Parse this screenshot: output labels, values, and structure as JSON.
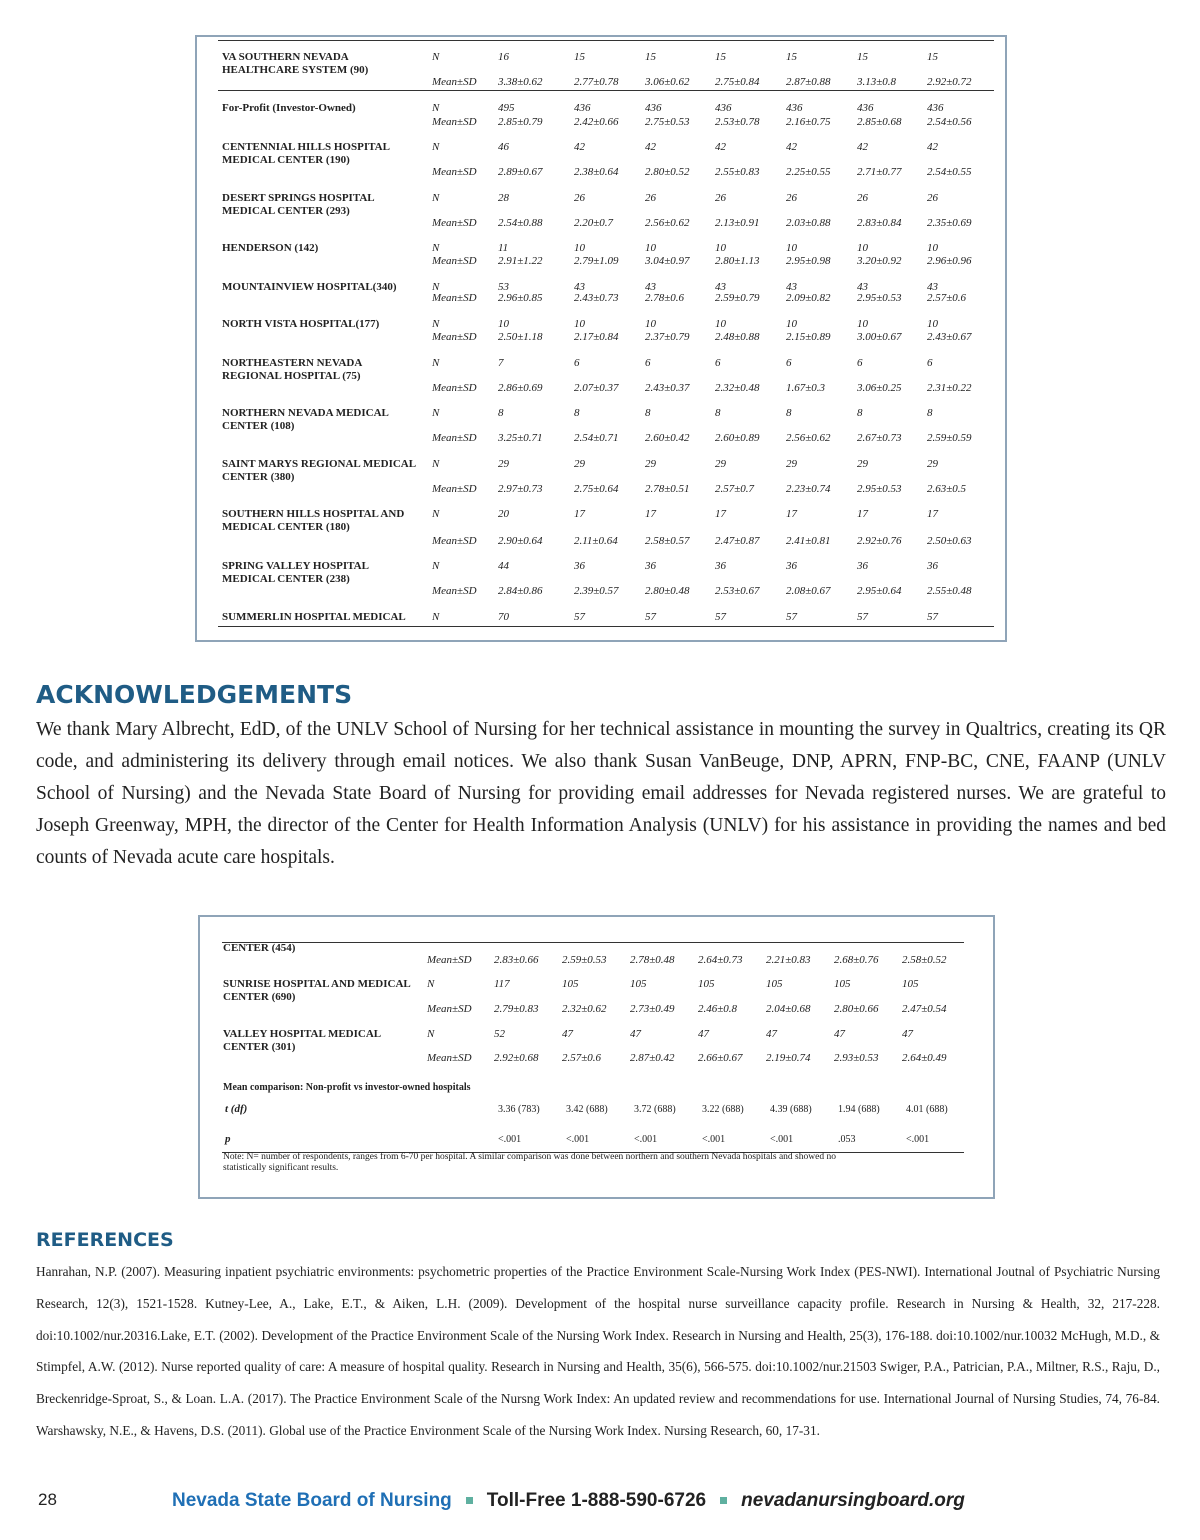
{
  "table1": {
    "rows": [
      {
        "label": "VA SOUTHERN NEVADA HEALTHCARE SYSTEM (90)",
        "stats": [
          {
            "label": "N",
            "values": [
              "16",
              "15",
              "15",
              "15",
              "15",
              "15",
              "15"
            ]
          },
          {
            "label": "Mean±SD",
            "values": [
              "3.38±0.62",
              "2.77±0.78",
              "3.06±0.62",
              "2.75±0.84",
              "2.87±0.88",
              "3.13±0.8",
              "2.92±0.72"
            ]
          }
        ]
      },
      {
        "label": "For-Profit (Investor-Owned)",
        "stats": [
          {
            "label": "N",
            "values": [
              "495",
              "436",
              "436",
              "436",
              "436",
              "436",
              "436"
            ]
          },
          {
            "label": "Mean±SD",
            "values": [
              "2.85±0.79",
              "2.42±0.66",
              "2.75±0.53",
              "2.53±0.78",
              "2.16±0.75",
              "2.85±0.68",
              "2.54±0.56"
            ]
          }
        ]
      },
      {
        "label": "CENTENNIAL HILLS HOSPITAL MEDICAL CENTER (190)",
        "stats": [
          {
            "label": "N",
            "values": [
              "46",
              "42",
              "42",
              "42",
              "42",
              "42",
              "42"
            ]
          },
          {
            "label": "Mean±SD",
            "values": [
              "2.89±0.67",
              "2.38±0.64",
              "2.80±0.52",
              "2.55±0.83",
              "2.25±0.55",
              "2.71±0.77",
              "2.54±0.55"
            ]
          }
        ]
      },
      {
        "label": "DESERT SPRINGS HOSPITAL MEDICAL CENTER (293)",
        "stats": [
          {
            "label": "N",
            "values": [
              "28",
              "26",
              "26",
              "26",
              "26",
              "26",
              "26"
            ]
          },
          {
            "label": "Mean±SD",
            "values": [
              "2.54±0.88",
              "2.20±0.7",
              "2.56±0.62",
              "2.13±0.91",
              "2.03±0.88",
              "2.83±0.84",
              "2.35±0.69"
            ]
          }
        ]
      },
      {
        "label": "HENDERSON (142)",
        "stats": [
          {
            "label": "N",
            "values": [
              "11",
              "10",
              "10",
              "10",
              "10",
              "10",
              "10"
            ]
          },
          {
            "label": "Mean±SD",
            "values": [
              "2.91±1.22",
              "2.79±1.09",
              "3.04±0.97",
              "2.80±1.13",
              "2.95±0.98",
              "3.20±0.92",
              "2.96±0.96"
            ]
          }
        ]
      },
      {
        "label": "MOUNTAINVIEW HOSPITAL(340)",
        "stats": [
          {
            "label": "N",
            "values": [
              "53",
              "43",
              "43",
              "43",
              "43",
              "43",
              "43"
            ]
          },
          {
            "label": "Mean±SD",
            "values": [
              "2.96±0.85",
              "2.43±0.73",
              "2.78±0.6",
              "2.59±0.79",
              "2.09±0.82",
              "2.95±0.53",
              "2.57±0.6"
            ]
          }
        ]
      },
      {
        "label": "NORTH VISTA HOSPITAL(177)",
        "stats": [
          {
            "label": "N",
            "values": [
              "10",
              "10",
              "10",
              "10",
              "10",
              "10",
              "10"
            ]
          },
          {
            "label": "Mean±SD",
            "values": [
              "2.50±1.18",
              "2.17±0.84",
              "2.37±0.79",
              "2.48±0.88",
              "2.15±0.89",
              "3.00±0.67",
              "2.43±0.67"
            ]
          }
        ]
      },
      {
        "label": "NORTHEASTERN NEVADA REGIONAL HOSPITAL (75)",
        "stats": [
          {
            "label": "N",
            "values": [
              "7",
              "6",
              "6",
              "6",
              "6",
              "6",
              "6"
            ]
          },
          {
            "label": "Mean±SD",
            "values": [
              "2.86±0.69",
              "2.07±0.37",
              "2.43±0.37",
              "2.32±0.48",
              "1.67±0.3",
              "3.06±0.25",
              "2.31±0.22"
            ]
          }
        ]
      },
      {
        "label": "NORTHERN NEVADA MEDICAL CENTER (108)",
        "stats": [
          {
            "label": "N",
            "values": [
              "8",
              "8",
              "8",
              "8",
              "8",
              "8",
              "8"
            ]
          },
          {
            "label": "Mean±SD",
            "values": [
              "3.25±0.71",
              "2.54±0.71",
              "2.60±0.42",
              "2.60±0.89",
              "2.56±0.62",
              "2.67±0.73",
              "2.59±0.59"
            ]
          }
        ]
      },
      {
        "label": "SAINT MARYS REGIONAL MEDICAL CENTER (380)",
        "stats": [
          {
            "label": "N",
            "values": [
              "29",
              "29",
              "29",
              "29",
              "29",
              "29",
              "29"
            ]
          },
          {
            "label": "Mean±SD",
            "values": [
              "2.97±0.73",
              "2.75±0.64",
              "2.78±0.51",
              "2.57±0.7",
              "2.23±0.74",
              "2.95±0.53",
              "2.63±0.5"
            ]
          }
        ]
      },
      {
        "label": "SOUTHERN HILLS HOSPITAL AND MEDICAL CENTER (180)",
        "stats": [
          {
            "label": "N",
            "values": [
              "20",
              "17",
              "17",
              "17",
              "17",
              "17",
              "17"
            ]
          },
          {
            "label": "Mean±SD",
            "values": [
              "2.90±0.64",
              "2.11±0.64",
              "2.58±0.57",
              "2.47±0.87",
              "2.41±0.81",
              "2.92±0.76",
              "2.50±0.63"
            ]
          }
        ]
      },
      {
        "label": "SPRING VALLEY HOSPITAL MEDICAL CENTER (238)",
        "stats": [
          {
            "label": "N",
            "values": [
              "44",
              "36",
              "36",
              "36",
              "36",
              "36",
              "36"
            ]
          },
          {
            "label": "Mean±SD",
            "values": [
              "2.84±0.86",
              "2.39±0.57",
              "2.80±0.48",
              "2.53±0.67",
              "2.08±0.67",
              "2.95±0.64",
              "2.55±0.48"
            ]
          }
        ]
      },
      {
        "label": "SUMMERLIN HOSPITAL MEDICAL",
        "stats": [
          {
            "label": "N",
            "values": [
              "70",
              "57",
              "57",
              "57",
              "57",
              "57",
              "57"
            ]
          }
        ]
      }
    ]
  },
  "acknowledgements": {
    "title": "ACKNOWLEDGEMENTS",
    "text": "We thank Mary Albrecht, EdD, of the UNLV School of Nursing for her technical assistance in mounting the survey in Qualtrics, creating its QR code, and administering its delivery through email notices. We also thank Susan VanBeuge, DNP, APRN, FNP-BC, CNE, FAANP (UNLV School of Nursing) and the Nevada State Board of Nursing for providing email addresses for Nevada registered nurses. We are grateful to Joseph Greenway, MPH, the director of the Center for Health Information Analysis (UNLV) for his assistance in providing the names and bed counts of Nevada acute care hospitals."
  },
  "table2": {
    "rows": [
      {
        "label": "CENTER (454)",
        "stats": [
          {
            "label": "Mean±SD",
            "values": [
              "2.83±0.66",
              "2.59±0.53",
              "2.78±0.48",
              "2.64±0.73",
              "2.21±0.83",
              "2.68±0.76",
              "2.58±0.52"
            ]
          }
        ]
      },
      {
        "label": "SUNRISE HOSPITAL AND MEDICAL CENTER (690)",
        "stats": [
          {
            "label": "N",
            "values": [
              "117",
              "105",
              "105",
              "105",
              "105",
              "105",
              "105"
            ]
          },
          {
            "label": "Mean±SD",
            "values": [
              "2.79±0.83",
              "2.32±0.62",
              "2.73±0.49",
              "2.46±0.8",
              "2.04±0.68",
              "2.80±0.66",
              "2.47±0.54"
            ]
          }
        ]
      },
      {
        "label": "VALLEY HOSPITAL MEDICAL CENTER (301)",
        "stats": [
          {
            "label": "N",
            "values": [
              "52",
              "47",
              "47",
              "47",
              "47",
              "47",
              "47"
            ]
          },
          {
            "label": "Mean±SD",
            "values": [
              "2.92±0.68",
              "2.57±0.6",
              "2.87±0.42",
              "2.66±0.67",
              "2.19±0.74",
              "2.93±0.53",
              "2.64±0.49"
            ]
          }
        ]
      }
    ],
    "comparison": {
      "title": "Mean comparison: Non-profit vs investor-owned hospitals",
      "stats": [
        {
          "label": "t (df)",
          "values": [
            "3.36 (783)",
            "3.42 (688)",
            "3.72 (688)",
            "3.22 (688)",
            "4.39 (688)",
            "1.94 (688)",
            "4.01 (688)"
          ]
        },
        {
          "label": "p",
          "values": [
            "<.001",
            "<.001",
            "<.001",
            "<.001",
            "<.001",
            ".053",
            "<.001"
          ]
        }
      ]
    },
    "note": "Note: N= number of respondents, ranges from 6-70 per hospital. A similar comparison was done between northern and southern Nevada hospitals and showed no statistically significant results."
  },
  "references": {
    "title": "REFERENCES",
    "text": "Hanrahan, N.P. (2007). Measuring inpatient psychiatric environments: psychometric properties of the Practice Environment Scale-Nursing Work Index (PES-NWI). International Joutnal of Psychiatric Nursing Research, 12(3), 1521-1528.  Kutney-Lee, A., Lake, E.T., & Aiken, L.H. (2009). Development of the hospital nurse surveillance capacity profile. Research in Nursing & Health, 32, 217-228. doi:10.1002/nur.20316.Lake, E.T. (2002). Development of the Practice Environment Scale of the Nursing Work Index. Research in Nursing and Health, 25(3), 176-188. doi:10.1002/nur.10032 McHugh, M.D., & Stimpfel, A.W. (2012). Nurse reported quality of care: A measure of hospital quality. Research in Nursing and Health, 35(6), 566-575. doi:10.1002/nur.21503 Swiger, P.A., Patrician, P.A., Miltner, R.S., Raju, D., Breckenridge-Sproat, S., & Loan. L.A. (2017). The Practice Environment Scale of the Nursng Work Index: An updated review and recommendations for use. International Journal of Nursing Studies, 74, 76-84. Warshawsky, N.E., & Havens, D.S. (2011). Global use of the Practice Environment Scale of the Nursing Work Index. Nursing Research, 60, 17-31."
  },
  "footer": {
    "page_number": "28",
    "org": "Nevada State Board of Nursing",
    "phone": "Toll-Free 1-888-590-6726",
    "website": "nevadanursingboard.org"
  }
}
